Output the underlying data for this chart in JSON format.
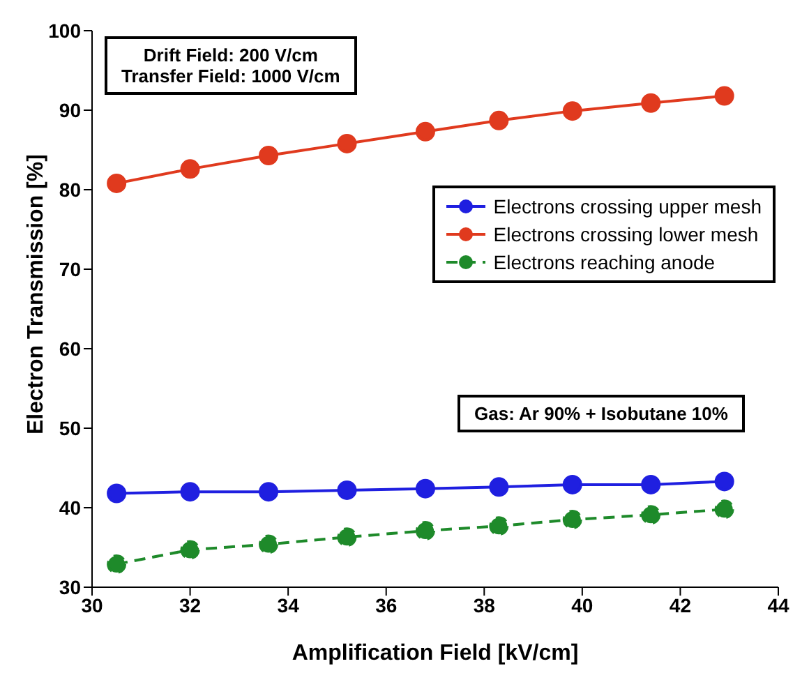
{
  "chart_data": {
    "type": "line",
    "xlabel": "Amplification Field [kV/cm]",
    "ylabel": "Electron Transmission [%]",
    "x": [
      30.5,
      32.0,
      33.6,
      35.2,
      36.8,
      38.3,
      39.8,
      41.4,
      42.9
    ],
    "series": [
      {
        "name": "Electrons crossing upper mesh",
        "color": "#1f1fe0",
        "values": [
          41.8,
          42.0,
          42.0,
          42.2,
          42.4,
          42.6,
          42.9,
          42.9,
          43.3
        ]
      },
      {
        "name": "Electrons crossing lower mesh",
        "color": "#e03a1e",
        "values": [
          80.8,
          82.6,
          84.3,
          85.8,
          87.3,
          88.7,
          89.9,
          90.9,
          91.8
        ]
      },
      {
        "name": "Electrons reaching anode",
        "color": "#1e8a2a",
        "line_style": "dashed",
        "values": [
          32.9,
          34.7,
          35.4,
          36.3,
          37.1,
          37.7,
          38.5,
          39.1,
          39.8
        ]
      }
    ],
    "xlim": [
      30,
      44
    ],
    "xticks": [
      30,
      32,
      34,
      36,
      38,
      40,
      42,
      44
    ],
    "ylim": [
      30,
      100
    ],
    "yticks": [
      30,
      40,
      50,
      60,
      70,
      80,
      90,
      100
    ],
    "marker": "circle",
    "legend": "right",
    "grid": false,
    "annotations": [
      "Drift Field: 200 V/cm\nTransfer Field: 1000 V/cm",
      "Gas: Ar 90% + Isobutane 10%"
    ]
  }
}
